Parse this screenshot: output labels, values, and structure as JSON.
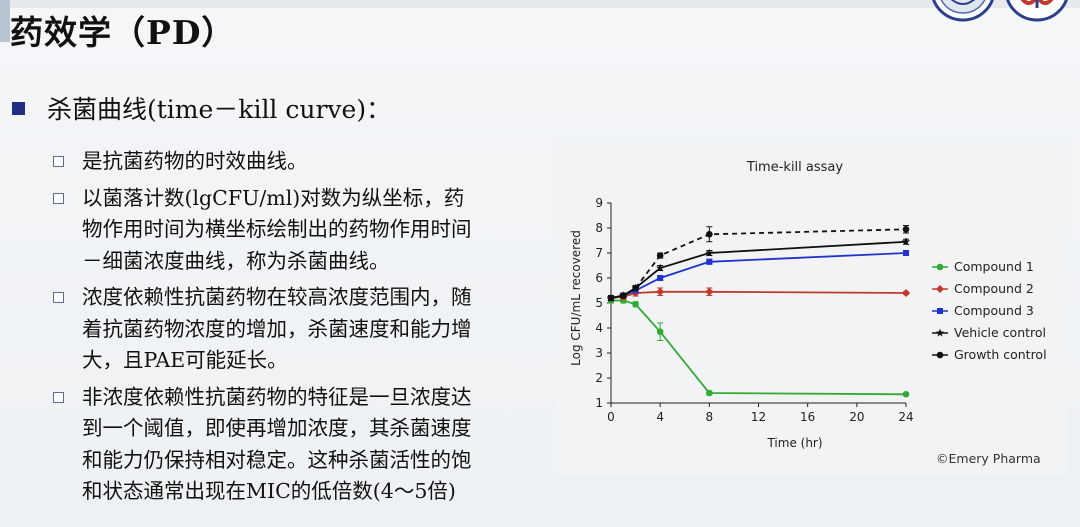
{
  "slide": {
    "title": "药效学（PD）",
    "main_bullet": "杀菌曲线(time－kill curve)：",
    "sub_bullets": [
      {
        "lines": [
          "是抗菌药物的时效曲线。"
        ]
      },
      {
        "lines": [
          "以菌落计数(lgCFU/ml)对数为纵坐标，药",
          "物作用时间为横坐标绘制出的药物作用时间",
          "－细菌浓度曲线，称为杀菌曲线。"
        ]
      },
      {
        "lines": [
          "浓度依赖性抗菌药物在较高浓度范围内，随",
          "着抗菌药物浓度的增加，杀菌速度和能力增",
          "大，且PAE可能延长。"
        ]
      },
      {
        "lines": [
          "非浓度依赖性抗菌药物的特征是一旦浓度达",
          "到一个阈值，即使再增加浓度，其杀菌速度",
          "和能力仍保持相对稳定。这种杀菌活性的饱",
          "和状态通常出现在MIC的低倍数(4～5倍)"
        ]
      }
    ],
    "accent_color": "#1f2f86"
  },
  "chart_data": {
    "type": "line",
    "title": "Time-kill assay",
    "xlabel": "Time (hr)",
    "ylabel": "Log CFU/mL recovered",
    "xlim": [
      0,
      24
    ],
    "ylim": [
      1,
      9
    ],
    "xticks": [
      0,
      4,
      8,
      12,
      16,
      20,
      24
    ],
    "yticks": [
      1,
      2,
      3,
      4,
      5,
      6,
      7,
      8,
      9
    ],
    "legend_position": "right",
    "credit": "©Emery Pharma",
    "series": [
      {
        "name": "Compound 1",
        "color": "#33aa33",
        "marker": "circle",
        "dashed": false,
        "x": [
          0,
          1,
          2,
          4,
          8,
          24
        ],
        "y": [
          5.1,
          5.1,
          4.95,
          3.85,
          1.4,
          1.35
        ],
        "err": [
          0.1,
          0.1,
          0.1,
          0.35,
          0.08,
          0.05
        ]
      },
      {
        "name": "Compound 2",
        "color": "#c0392b",
        "marker": "diamond",
        "dashed": false,
        "x": [
          0,
          1,
          2,
          4,
          8,
          24
        ],
        "y": [
          5.2,
          5.25,
          5.4,
          5.45,
          5.45,
          5.4
        ],
        "err": [
          0.1,
          0.1,
          0.12,
          0.15,
          0.15,
          0.05
        ]
      },
      {
        "name": "Compound 3",
        "color": "#2233cc",
        "marker": "square",
        "dashed": false,
        "x": [
          0,
          1,
          2,
          4,
          8,
          24
        ],
        "y": [
          5.2,
          5.3,
          5.5,
          6.0,
          6.65,
          7.0
        ],
        "err": [
          0.1,
          0.1,
          0.1,
          0.1,
          0.1,
          0.1
        ]
      },
      {
        "name": "Vehicle control",
        "color": "#111111",
        "marker": "star",
        "dashed": false,
        "x": [
          0,
          1,
          2,
          4,
          8,
          24
        ],
        "y": [
          5.2,
          5.3,
          5.6,
          6.4,
          7.0,
          7.45
        ],
        "err": [
          0.1,
          0.1,
          0.1,
          0.1,
          0.1,
          0.1
        ]
      },
      {
        "name": "Growth control",
        "color": "#111111",
        "marker": "circle",
        "dashed": true,
        "x": [
          0,
          1,
          2,
          4,
          8,
          24
        ],
        "y": [
          5.2,
          5.3,
          5.6,
          6.9,
          7.75,
          7.95
        ],
        "err": [
          0.1,
          0.1,
          0.1,
          0.1,
          0.3,
          0.15
        ]
      }
    ]
  }
}
